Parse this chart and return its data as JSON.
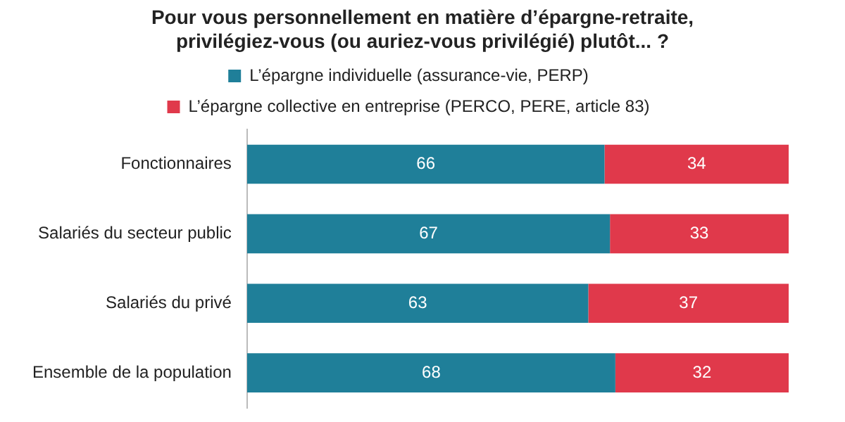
{
  "chart_data": {
    "type": "bar",
    "orientation": "horizontal",
    "stacked": true,
    "title": "Pour vous personnellement en matière d’épargne-retraite, privilégiez-vous (ou auriez-vous privilégié) plutôt... ?",
    "categories": [
      "Fonctionnaires",
      "Salariés du secteur public",
      "Salariés du privé",
      "Ensemble de la population"
    ],
    "series": [
      {
        "name": "L’épargne individuelle (assurance-vie, PERP)",
        "color": "#1f7f99",
        "values": [
          66,
          67,
          63,
          68
        ]
      },
      {
        "name": "L’épargne collective en entreprise (PERCO, PERE, article 83)",
        "color": "#e0394b",
        "values": [
          34,
          33,
          37,
          32
        ]
      }
    ],
    "data_labels": true,
    "legend": "top",
    "tick_labels": "y"
  }
}
